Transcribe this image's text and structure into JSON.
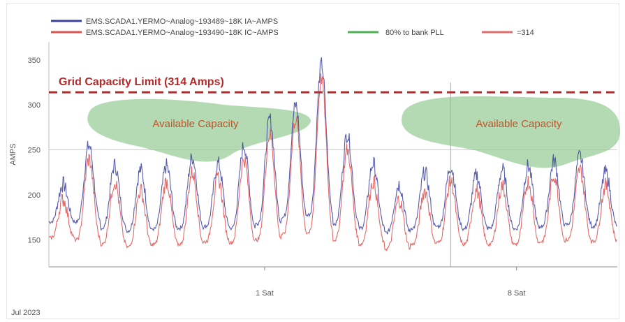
{
  "chart_data": {
    "type": "line",
    "title": "",
    "xlabel": "",
    "ylabel": "AMPS",
    "ylim": [
      120,
      370
    ],
    "y_ticks": [
      150,
      200,
      250,
      300,
      350
    ],
    "x_ticks": [
      "1 Sat",
      "8 Sat"
    ],
    "x_start_label": "Jul 2023",
    "grid": true,
    "legend_position": "top",
    "legend": [
      {
        "name": "EMS.SCADA1.YERMO~Analog~193489~18K IA~AMPS",
        "color": "#3b3fa0"
      },
      {
        "name": "EMS.SCADA1.YERMO~Analog~193490~18K IC~AMPS",
        "color": "#e05050"
      },
      {
        "name": "80% to bank PLL",
        "color": "#4caf50"
      },
      {
        "name": "=314",
        "color": "#e36a6a"
      }
    ],
    "series": [
      {
        "name": "EMS.SCADA1.YERMO~Analog~193489~18K IA~AMPS",
        "color": "#3b3fa0",
        "daily_peaks": [
          212,
          255,
          233,
          228,
          232,
          242,
          235,
          255,
          284,
          300,
          345,
          268,
          235,
          212,
          225,
          232,
          222,
          228,
          232,
          238,
          243,
          225
        ],
        "daily_mins": [
          170,
          170,
          163,
          160,
          162,
          163,
          165,
          163,
          168,
          175,
          178,
          168,
          163,
          158,
          163,
          165,
          162,
          163,
          162,
          165,
          167,
          165
        ]
      },
      {
        "name": "EMS.SCADA1.YERMO~Analog~193490~18K IC~AMPS",
        "color": "#e05050",
        "daily_peaks": [
          195,
          240,
          215,
          205,
          215,
          225,
          218,
          240,
          268,
          285,
          330,
          250,
          215,
          195,
          205,
          215,
          205,
          210,
          215,
          222,
          228,
          210
        ],
        "daily_mins": [
          152,
          150,
          145,
          142,
          145,
          145,
          148,
          147,
          150,
          156,
          158,
          150,
          145,
          140,
          145,
          147,
          145,
          145,
          145,
          148,
          150,
          148
        ]
      }
    ],
    "reference_lines": [
      {
        "label": "Grid Capacity Limit (314 Amps)",
        "value": 314,
        "color": "#b22a2a",
        "style": "dashed"
      },
      {
        "value": 250,
        "color": "#cccccc",
        "style": "solid"
      }
    ],
    "annotations": [
      {
        "text": "Available Capacity",
        "region": "left",
        "color": "#8cc68c"
      },
      {
        "text": "Available Capacity",
        "region": "right",
        "color": "#8cc68c"
      }
    ]
  }
}
